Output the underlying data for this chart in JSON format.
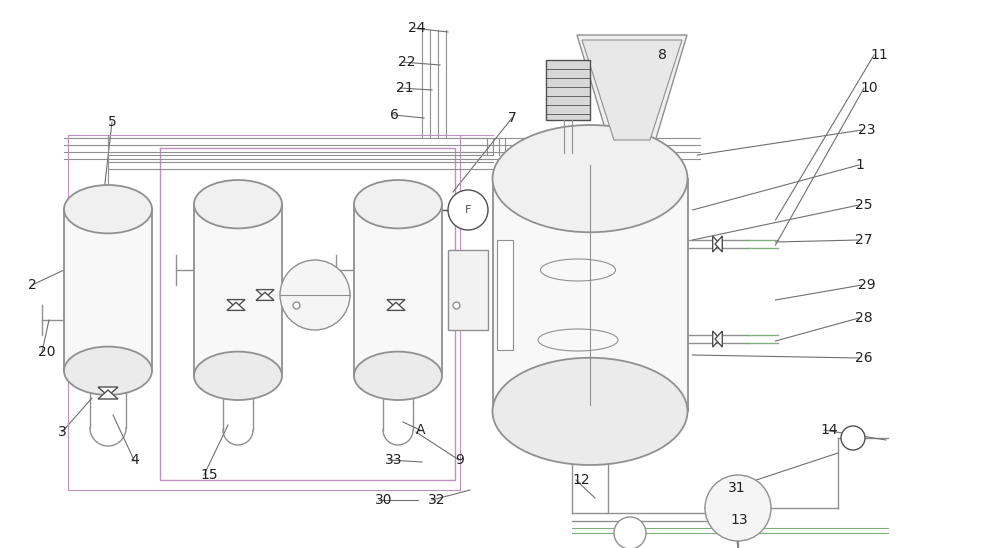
{
  "bg_color": "#ffffff",
  "lc_gray": "#909090",
  "lc_dark": "#505050",
  "lc_purple": "#c090c0",
  "lc_green": "#80b080",
  "lc_light": "#b0b0b0",
  "figw": 10.0,
  "figh": 5.48
}
